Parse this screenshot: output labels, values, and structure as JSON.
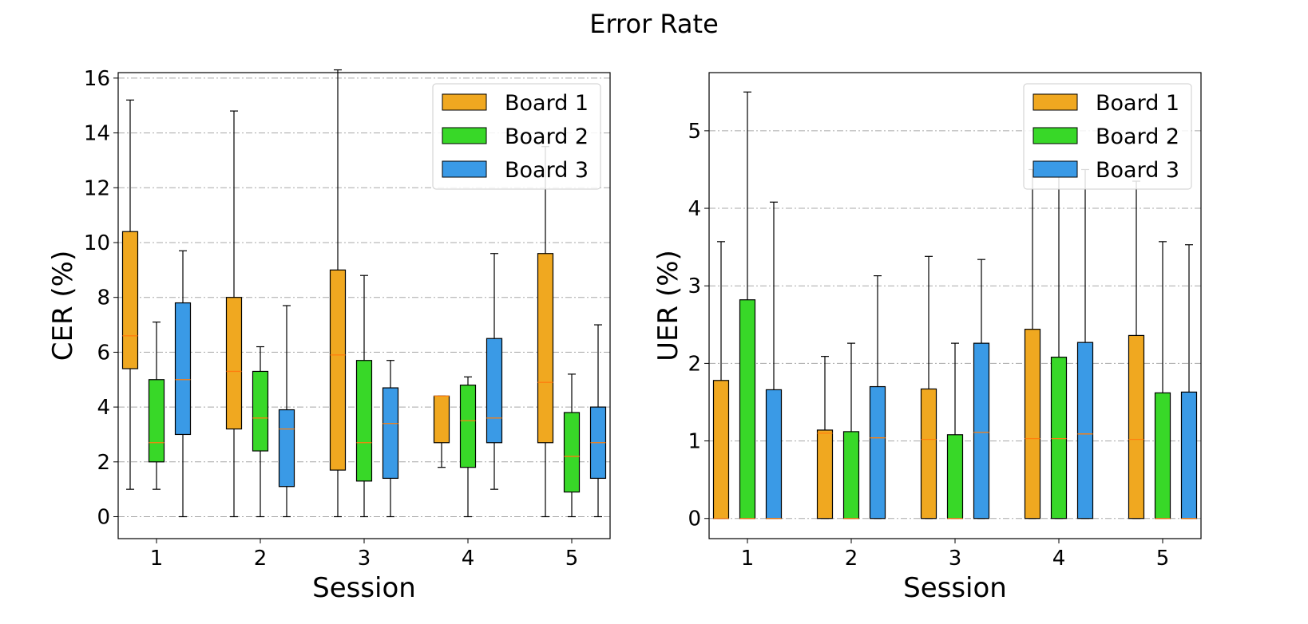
{
  "title": "Error Rate",
  "colors": {
    "board1": "#f0a820",
    "board2": "#38d828",
    "board3": "#3a9ae6",
    "median": "#ff7f0e"
  },
  "chart_data": [
    {
      "type": "box",
      "xlabel": "Session",
      "ylabel": "CER (%)",
      "categories": [
        "1",
        "2",
        "3",
        "4",
        "5"
      ],
      "ylim": [
        -0.8,
        16.2
      ],
      "yticks": [
        0,
        2,
        4,
        6,
        8,
        10,
        12,
        14,
        16
      ],
      "grid": "horizontal dash-dot",
      "legend_position": "top-right",
      "series": [
        {
          "name": "Board 1",
          "boxes": [
            {
              "min": 1.0,
              "q1": 5.4,
              "median": 6.6,
              "q3": 10.4,
              "max": 15.2
            },
            {
              "min": 0.0,
              "q1": 3.2,
              "median": 5.3,
              "q3": 8.0,
              "max": 14.8
            },
            {
              "min": 0.0,
              "q1": 1.7,
              "median": 5.9,
              "q3": 9.0,
              "max": 16.3
            },
            {
              "min": 1.8,
              "q1": 2.7,
              "median": 4.4,
              "q3": 4.4,
              "max": 4.4
            },
            {
              "min": 0.0,
              "q1": 2.7,
              "median": 4.9,
              "q3": 9.6,
              "max": 13.5
            }
          ]
        },
        {
          "name": "Board 2",
          "boxes": [
            {
              "min": 1.0,
              "q1": 2.0,
              "median": 2.7,
              "q3": 5.0,
              "max": 7.1
            },
            {
              "min": 0.0,
              "q1": 2.4,
              "median": 3.6,
              "q3": 5.3,
              "max": 6.2
            },
            {
              "min": 0.0,
              "q1": 1.3,
              "median": 2.7,
              "q3": 5.7,
              "max": 8.8
            },
            {
              "min": 0.0,
              "q1": 1.8,
              "median": 3.5,
              "q3": 4.8,
              "max": 5.1
            },
            {
              "min": 0.0,
              "q1": 0.9,
              "median": 2.2,
              "q3": 3.8,
              "max": 5.2
            }
          ]
        },
        {
          "name": "Board 3",
          "boxes": [
            {
              "min": 0.0,
              "q1": 3.0,
              "median": 5.0,
              "q3": 7.8,
              "max": 9.7
            },
            {
              "min": 0.0,
              "q1": 1.1,
              "median": 3.2,
              "q3": 3.9,
              "max": 7.7
            },
            {
              "min": 0.0,
              "q1": 1.4,
              "median": 3.4,
              "q3": 4.7,
              "max": 5.7
            },
            {
              "min": 1.0,
              "q1": 2.7,
              "median": 3.6,
              "q3": 6.5,
              "max": 9.6
            },
            {
              "min": 0.0,
              "q1": 1.4,
              "median": 2.7,
              "q3": 4.0,
              "max": 7.0
            }
          ]
        }
      ]
    },
    {
      "type": "box",
      "xlabel": "Session",
      "ylabel": "UER (%)",
      "categories": [
        "1",
        "2",
        "3",
        "4",
        "5"
      ],
      "ylim": [
        -0.26,
        5.75
      ],
      "yticks": [
        0,
        1,
        2,
        3,
        4,
        5
      ],
      "grid": "horizontal dash-dot",
      "legend_position": "top-right",
      "series": [
        {
          "name": "Board 1",
          "boxes": [
            {
              "min": 0.0,
              "q1": 0.0,
              "median": 0.0,
              "q3": 1.78,
              "max": 3.57
            },
            {
              "min": 0.0,
              "q1": 0.0,
              "median": 1.1,
              "q3": 1.14,
              "max": 2.09
            },
            {
              "min": 0.0,
              "q1": 0.0,
              "median": 1.02,
              "q3": 1.67,
              "max": 3.38
            },
            {
              "min": 0.0,
              "q1": 0.0,
              "median": 1.03,
              "q3": 2.44,
              "max": 4.5
            },
            {
              "min": 0.0,
              "q1": 0.0,
              "median": 1.02,
              "q3": 2.36,
              "max": 4.35
            }
          ]
        },
        {
          "name": "Board 2",
          "boxes": [
            {
              "min": 0.0,
              "q1": 0.0,
              "median": 0.0,
              "q3": 2.82,
              "max": 5.5
            },
            {
              "min": 0.0,
              "q1": 0.0,
              "median": 0.0,
              "q3": 1.12,
              "max": 2.26
            },
            {
              "min": 0.0,
              "q1": 0.0,
              "median": 0.0,
              "q3": 1.08,
              "max": 2.26
            },
            {
              "min": 0.0,
              "q1": 0.0,
              "median": 1.03,
              "q3": 2.08,
              "max": 4.5
            },
            {
              "min": 0.0,
              "q1": 0.0,
              "median": 0.0,
              "q3": 1.62,
              "max": 3.57
            }
          ]
        },
        {
          "name": "Board 3",
          "boxes": [
            {
              "min": 0.0,
              "q1": 0.0,
              "median": 0.0,
              "q3": 1.66,
              "max": 4.08
            },
            {
              "min": 0.0,
              "q1": 0.0,
              "median": 1.04,
              "q3": 1.7,
              "max": 3.13
            },
            {
              "min": 0.0,
              "q1": 0.0,
              "median": 1.11,
              "q3": 2.26,
              "max": 3.34
            },
            {
              "min": 0.0,
              "q1": 0.0,
              "median": 1.09,
              "q3": 2.27,
              "max": 4.5
            },
            {
              "min": 0.0,
              "q1": 0.0,
              "median": 0.0,
              "q3": 1.63,
              "max": 3.53
            }
          ]
        }
      ]
    }
  ]
}
